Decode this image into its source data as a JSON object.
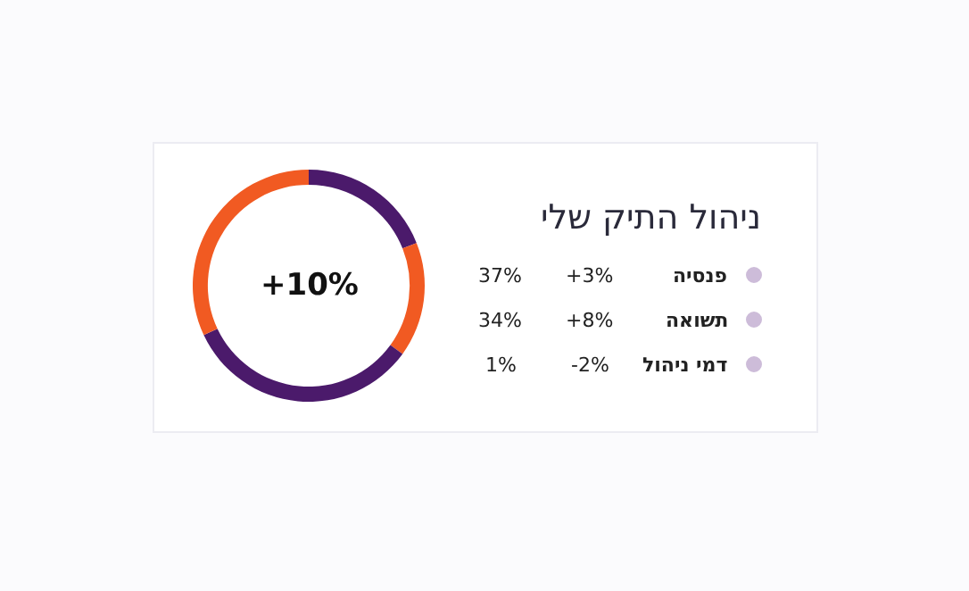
{
  "chart_data": {
    "type": "donut",
    "title": "ניהול התיק שלי",
    "categories": [
      null,
      null,
      null,
      null
    ],
    "values": [
      19,
      16,
      33,
      32
    ],
    "colors": [
      "#4b1a6b",
      "#f15a22",
      "#4b1a6b",
      "#f15a22"
    ],
    "annotations": [
      "+10%",
      "פנסיה",
      "+3%",
      "37%",
      "תשואה",
      "+8%",
      "34%",
      "דמי ניהול",
      "-2%",
      "1%"
    ]
  }
}
